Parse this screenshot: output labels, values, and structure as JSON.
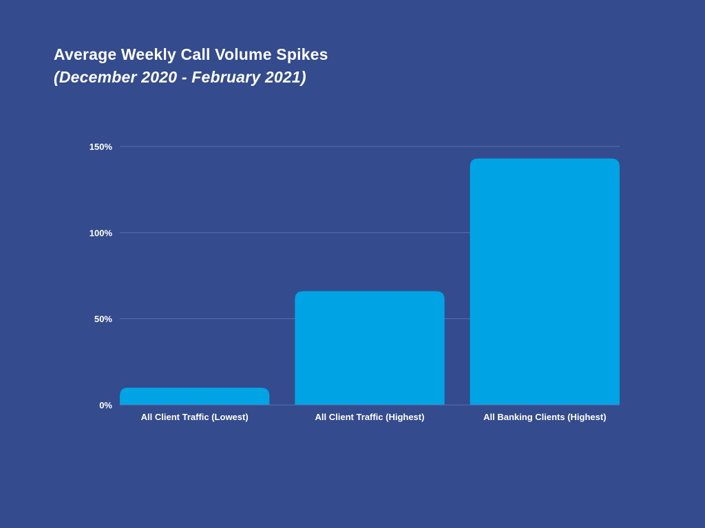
{
  "title": "Average Weekly Call Volume Spikes",
  "subtitle": "(December 2020 - February 2021)",
  "colors": {
    "background": "#344b8d",
    "bar": "#00a4e4",
    "gridline": "#5a6fae",
    "text": "#ffffff"
  },
  "chart_data": {
    "type": "bar",
    "title": "Average Weekly Call Volume Spikes",
    "subtitle": "(December 2020 - February 2021)",
    "categories": [
      "All Client Traffic (Lowest)",
      "All Client Traffic (Highest)",
      "All Banking Clients (Highest)"
    ],
    "values": [
      10,
      66,
      143
    ],
    "unit": "%",
    "ylim": [
      0,
      150
    ],
    "yticks": [
      0,
      50,
      100,
      150
    ],
    "ytick_labels": [
      "0%",
      "50%",
      "100%",
      "150%"
    ],
    "xlabel": "",
    "ylabel": "",
    "grid": true,
    "legend": "none"
  }
}
